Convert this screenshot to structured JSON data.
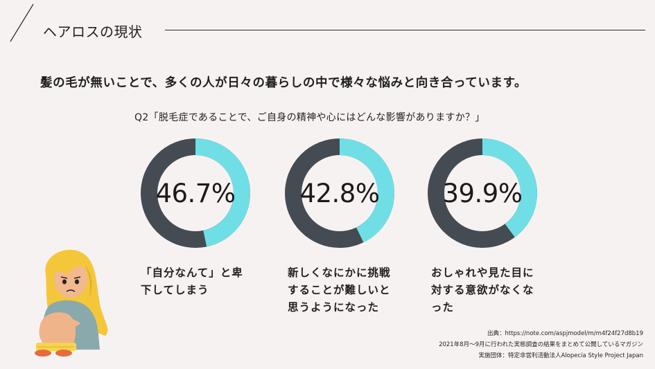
{
  "header": {
    "title": "ヘアロスの現状"
  },
  "headline": "髪の毛が無いことで、多くの人が日々の暮らしの中で様々な悩みと向き合っています。",
  "question": "Q2「脱毛症であることで、ご自身の精神や心にはどんな影響がありますか？」",
  "colors": {
    "accent": "#70dfe5",
    "track": "#454b52",
    "background": "#f7f2f2"
  },
  "stats": [
    {
      "percent": "46.7%",
      "value": 46.7,
      "label_line1": "「自分なんて」と卑",
      "label_line2": "下してしまう",
      "label_line3": ""
    },
    {
      "percent": "42.8%",
      "value": 42.8,
      "label_line1": "新しくなにかに挑戦",
      "label_line2": "することが難しいと",
      "label_line3": "思うようになった"
    },
    {
      "percent": "39.9%",
      "value": 39.9,
      "label_line1": "おしゃれや見た目に",
      "label_line2": "対する意欲がなくな",
      "label_line3": "った"
    }
  ],
  "sources": {
    "line1": "出典：https://note.com/aspjmodel/m/m4f24f27d8b19",
    "line2": "2021年8月～9月に行われた実態調査の結果をまとめて公開しているマガジン",
    "line3": "実施団体：特定非営利活動法人Alopecia Style Project Japan"
  }
}
